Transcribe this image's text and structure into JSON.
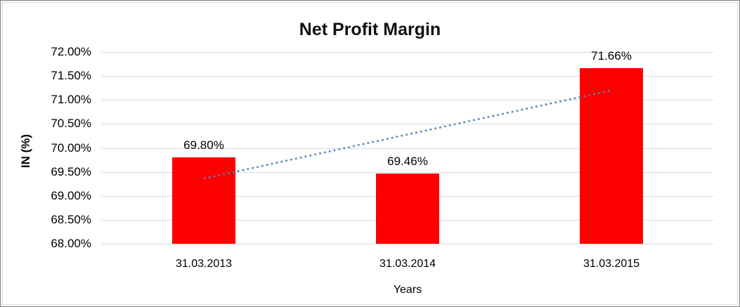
{
  "chart_data": {
    "type": "bar",
    "title": "Net Profit Margin",
    "xlabel": "Years",
    "ylabel": "IN (%)",
    "categories": [
      "31.03.2013",
      "31.03.2014",
      "31.03.2015"
    ],
    "values": [
      69.8,
      69.46,
      71.66
    ],
    "value_labels": [
      "69.80%",
      "69.46%",
      "71.66%"
    ],
    "ylim": [
      68.0,
      72.0
    ],
    "ytick_step": 0.5,
    "ytick_labels": [
      "68.00%",
      "68.50%",
      "69.00%",
      "69.50%",
      "70.00%",
      "70.50%",
      "71.00%",
      "71.50%",
      "72.00%"
    ],
    "grid": true,
    "legend": "none",
    "bar_color": "#ff0000",
    "trendline": {
      "type": "linear",
      "style": "dotted",
      "color": "#4f81bd",
      "start_value": 69.36,
      "end_value": 71.2
    }
  },
  "colors": {
    "gridline": "#d9d9d9",
    "text": "#000000",
    "frame_border": "#d9d9d9",
    "outer_border": "#7f7f7f"
  }
}
